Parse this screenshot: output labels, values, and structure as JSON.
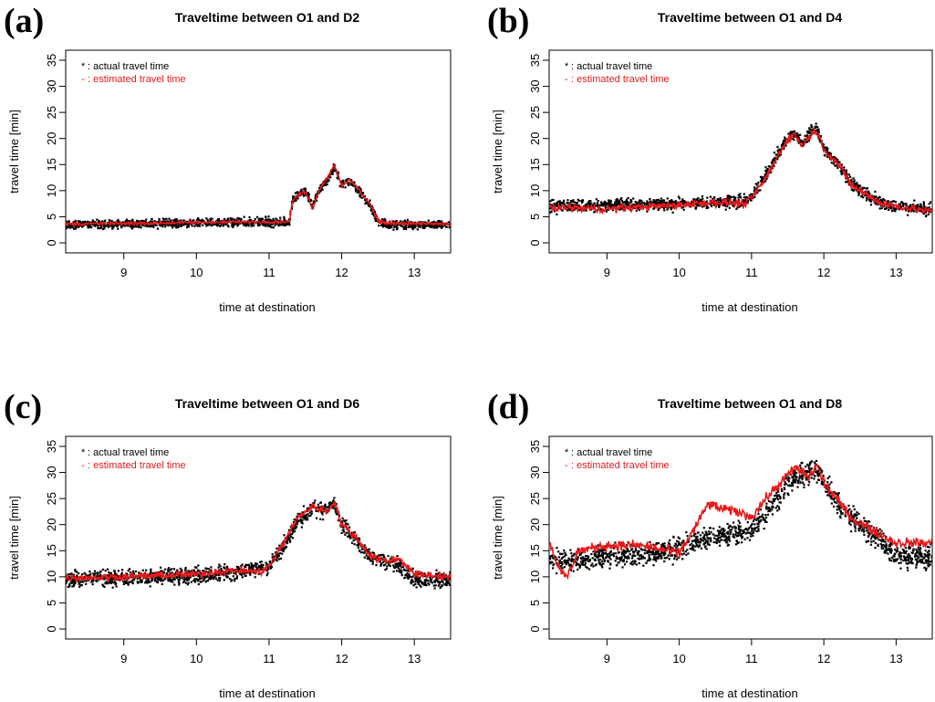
{
  "chart_data": [
    {
      "type": "scatter",
      "panel_label": "(a)",
      "title": "Traveltime between O1 and D2",
      "xlabel": "time at destination",
      "ylabel": "travel time [min]",
      "xlim": [
        8.2,
        13.5
      ],
      "ylim": [
        0,
        35
      ],
      "xticks": [
        9,
        10,
        11,
        12,
        13
      ],
      "yticks": [
        0,
        5,
        10,
        15,
        20,
        25,
        30,
        35
      ],
      "grid": false,
      "legend_position": "top-left",
      "legend": [
        {
          "marker": "*",
          "label": ": actual travel time",
          "color": "#000000"
        },
        {
          "marker": "-",
          "label": ": estimated travel time",
          "color": "#e41a1c"
        }
      ],
      "series": [
        {
          "name": "actual travel time",
          "style": "points",
          "color": "#000000",
          "noise": 0.7,
          "x": [
            8.2,
            9.0,
            10.0,
            10.5,
            11.0,
            11.28,
            11.32,
            11.4,
            11.5,
            11.6,
            11.7,
            11.8,
            11.9,
            12.0,
            12.1,
            12.2,
            12.3,
            12.4,
            12.5,
            12.6,
            13.0,
            13.5
          ],
          "y": [
            3.5,
            3.6,
            3.8,
            3.9,
            4.0,
            4.0,
            8.0,
            9.2,
            9.8,
            7.0,
            10.5,
            12.0,
            14.5,
            11.0,
            12.0,
            10.5,
            9.0,
            7.0,
            4.0,
            3.6,
            3.5,
            3.4
          ]
        },
        {
          "name": "estimated travel time",
          "style": "line",
          "color": "#e41a1c",
          "noise": 0.25,
          "x": [
            8.2,
            9.0,
            10.0,
            10.5,
            11.0,
            11.28,
            11.32,
            11.4,
            11.5,
            11.6,
            11.7,
            11.8,
            11.9,
            12.0,
            12.1,
            12.2,
            12.3,
            12.4,
            12.5,
            12.6,
            13.0,
            13.5
          ],
          "y": [
            3.6,
            3.7,
            3.9,
            4.0,
            4.0,
            4.1,
            8.0,
            9.2,
            9.8,
            6.5,
            10.5,
            12.5,
            15.0,
            11.0,
            12.0,
            10.8,
            9.0,
            7.2,
            4.2,
            3.8,
            3.7,
            3.6
          ]
        }
      ]
    },
    {
      "type": "scatter",
      "panel_label": "(b)",
      "title": "Traveltime between O1 and D4",
      "xlabel": "time at destination",
      "ylabel": "travel time [min]",
      "xlim": [
        8.2,
        13.5
      ],
      "ylim": [
        0,
        35
      ],
      "xticks": [
        9,
        10,
        11,
        12,
        13
      ],
      "yticks": [
        0,
        5,
        10,
        15,
        20,
        25,
        30,
        35
      ],
      "grid": false,
      "legend_position": "top-left",
      "legend": [
        {
          "marker": "*",
          "label": ": actual travel time",
          "color": "#000000"
        },
        {
          "marker": "-",
          "label": ": estimated travel time",
          "color": "#e41a1c"
        }
      ],
      "series": [
        {
          "name": "actual travel time",
          "style": "points",
          "color": "#000000",
          "noise": 1.0,
          "x": [
            8.2,
            9.0,
            10.0,
            10.5,
            10.9,
            11.0,
            11.2,
            11.4,
            11.5,
            11.6,
            11.7,
            11.8,
            11.9,
            12.0,
            12.2,
            12.4,
            12.6,
            12.8,
            13.0,
            13.5
          ],
          "y": [
            7.0,
            7.2,
            7.5,
            7.8,
            8.0,
            9.0,
            13.0,
            18.0,
            20.0,
            21.0,
            19.0,
            21.0,
            22.0,
            18.0,
            15.0,
            11.0,
            9.0,
            7.5,
            7.0,
            6.5
          ]
        },
        {
          "name": "estimated travel time",
          "style": "line",
          "color": "#e41a1c",
          "noise": 0.6,
          "x": [
            8.2,
            9.0,
            10.0,
            10.5,
            10.9,
            11.0,
            11.2,
            11.4,
            11.5,
            11.6,
            11.7,
            11.8,
            11.9,
            12.0,
            12.2,
            12.4,
            12.6,
            12.8,
            13.0,
            13.5
          ],
          "y": [
            6.8,
            6.5,
            7.3,
            7.8,
            7.5,
            8.5,
            12.5,
            17.5,
            20.0,
            20.8,
            18.5,
            20.5,
            21.5,
            18.0,
            15.0,
            10.8,
            9.2,
            7.5,
            7.0,
            6.0
          ]
        }
      ]
    },
    {
      "type": "scatter",
      "panel_label": "(c)",
      "title": "Traveltime between O1 and D6",
      "xlabel": "time at destination",
      "ylabel": "travel time [min]",
      "xlim": [
        8.2,
        13.5
      ],
      "ylim": [
        0,
        35
      ],
      "xticks": [
        9,
        10,
        11,
        12,
        13
      ],
      "yticks": [
        0,
        5,
        10,
        15,
        20,
        25,
        30,
        35
      ],
      "grid": false,
      "legend_position": "top-left",
      "legend": [
        {
          "marker": "*",
          "label": ": actual travel time",
          "color": "#000000"
        },
        {
          "marker": "-",
          "label": ": estimated travel time",
          "color": "#e41a1c"
        }
      ],
      "series": [
        {
          "name": "actual travel time",
          "style": "points",
          "color": "#000000",
          "noise": 1.3,
          "x": [
            8.2,
            9.0,
            10.0,
            10.5,
            10.9,
            11.0,
            11.2,
            11.4,
            11.6,
            11.8,
            11.9,
            12.0,
            12.2,
            12.4,
            12.6,
            12.8,
            13.0,
            13.5
          ],
          "y": [
            9.5,
            9.8,
            10.2,
            11.0,
            11.5,
            12.0,
            16.0,
            21.0,
            23.0,
            23.0,
            24.0,
            20.0,
            17.0,
            14.0,
            13.0,
            12.0,
            9.5,
            9.5
          ]
        },
        {
          "name": "estimated travel time",
          "style": "line",
          "color": "#e41a1c",
          "noise": 0.6,
          "x": [
            8.2,
            9.0,
            10.0,
            10.5,
            10.9,
            11.0,
            11.2,
            11.4,
            11.6,
            11.8,
            11.9,
            12.0,
            12.2,
            12.4,
            12.6,
            12.8,
            13.0,
            13.5
          ],
          "y": [
            9.8,
            10.0,
            10.5,
            11.2,
            11.0,
            12.0,
            16.5,
            21.5,
            23.5,
            22.5,
            24.5,
            20.0,
            17.5,
            14.0,
            13.0,
            13.5,
            10.5,
            10.0
          ]
        }
      ]
    },
    {
      "type": "scatter",
      "panel_label": "(d)",
      "title": "Traveltime between O1 and D8",
      "xlabel": "time at destination",
      "ylabel": "travel time [min]",
      "xlim": [
        8.2,
        13.5
      ],
      "ylim": [
        0,
        35
      ],
      "xticks": [
        9,
        10,
        11,
        12,
        13
      ],
      "yticks": [
        0,
        5,
        10,
        15,
        20,
        25,
        30,
        35
      ],
      "grid": false,
      "legend_position": "top-left",
      "legend": [
        {
          "marker": "*",
          "label": ": actual travel time",
          "color": "#000000"
        },
        {
          "marker": "-",
          "label": ": estimated travel time",
          "color": "#e41a1c"
        }
      ],
      "series": [
        {
          "name": "actual travel time",
          "style": "points",
          "color": "#000000",
          "noise": 1.8,
          "x": [
            8.2,
            8.5,
            9.0,
            9.5,
            10.0,
            10.3,
            10.6,
            11.0,
            11.2,
            11.4,
            11.6,
            11.8,
            11.9,
            12.0,
            12.2,
            12.4,
            12.6,
            12.8,
            13.0,
            13.5
          ],
          "y": [
            13.5,
            13.0,
            14.0,
            14.5,
            15.5,
            17.0,
            18.0,
            19.0,
            22.0,
            26.0,
            29.0,
            30.0,
            31.0,
            28.0,
            24.0,
            21.0,
            19.0,
            17.0,
            14.0,
            14.0
          ]
        },
        {
          "name": "estimated travel time",
          "style": "line",
          "color": "#e41a1c",
          "noise": 0.8,
          "x": [
            8.2,
            8.35,
            8.45,
            8.6,
            9.0,
            9.5,
            10.0,
            10.2,
            10.4,
            10.6,
            10.8,
            11.0,
            11.2,
            11.4,
            11.6,
            11.8,
            11.9,
            12.0,
            12.2,
            12.4,
            12.6,
            12.8,
            13.0,
            13.5
          ],
          "y": [
            17.0,
            11.0,
            10.0,
            15.0,
            16.0,
            16.0,
            14.5,
            19.0,
            24.0,
            23.0,
            22.5,
            21.5,
            25.0,
            28.0,
            31.0,
            29.0,
            31.5,
            28.0,
            24.5,
            21.0,
            19.5,
            18.0,
            16.5,
            16.5
          ]
        }
      ]
    }
  ]
}
